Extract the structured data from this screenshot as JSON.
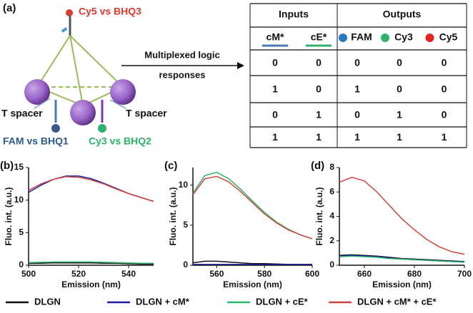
{
  "panel_a": {
    "label": "(a)",
    "top_pair": "Cy5 vs BHQ3",
    "arrow_text": [
      "Multiplexed logic",
      "responses"
    ],
    "spacer_left": "T spacer",
    "spacer_right": "T spacer",
    "left_pair": "FAM vs BHQ1",
    "right_pair": "Cy3 vs BHQ2"
  },
  "table": {
    "groups": [
      "Inputs",
      "Outputs"
    ],
    "columns": [
      "cM*",
      "cE*",
      "FAM",
      "Cy3",
      "Cy5"
    ],
    "rows": [
      [
        0,
        0,
        0,
        0,
        0
      ],
      [
        1,
        0,
        1,
        0,
        0
      ],
      [
        0,
        1,
        0,
        1,
        0
      ],
      [
        1,
        1,
        1,
        1,
        1
      ]
    ]
  },
  "legend": [
    {
      "name": "DLGN",
      "color": "#111111"
    },
    {
      "name": "DLGN + cM*",
      "color": "#1c1c9c"
    },
    {
      "name": "DLGN + cE*",
      "color": "#2bb36b"
    },
    {
      "name": "DLGN + cM* + cE*",
      "color": "#d0463f"
    }
  ],
  "chart_data": [
    {
      "type": "line",
      "panel": "(b)",
      "x_label": "Emission (nm)",
      "y_label": "Fluo. int. (a.u.)",
      "x": [
        500,
        505,
        510,
        515,
        520,
        525,
        530,
        535,
        540,
        545,
        550
      ],
      "xlim": [
        500,
        550
      ],
      "xticks": [
        500,
        520,
        540
      ],
      "ylim": [
        0,
        15
      ],
      "yticks": [
        0,
        5,
        10,
        15
      ],
      "series": [
        {
          "values": [
            0.3,
            0.3,
            0.35,
            0.35,
            0.35,
            0.35,
            0.3,
            0.3,
            0.25,
            0.2,
            0.2
          ]
        },
        {
          "values": [
            11.2,
            12.3,
            13.2,
            13.7,
            13.7,
            13.3,
            12.6,
            11.8,
            11.0,
            10.4,
            9.8
          ]
        },
        {
          "values": [
            0.4,
            0.45,
            0.5,
            0.5,
            0.5,
            0.5,
            0.45,
            0.4,
            0.35,
            0.3,
            0.3
          ]
        },
        {
          "values": [
            11.5,
            12.5,
            13.2,
            13.6,
            13.5,
            13.1,
            12.5,
            11.7,
            11.0,
            10.4,
            9.8
          ]
        }
      ]
    },
    {
      "type": "line",
      "panel": "(c)",
      "x_label": "Emission (nm)",
      "y_label": "Fluo. int. (a.u.)",
      "x": [
        550,
        555,
        560,
        565,
        570,
        575,
        580,
        585,
        590,
        595,
        600
      ],
      "xlim": [
        550,
        600
      ],
      "xticks": [
        560,
        580,
        600
      ],
      "ylim": [
        0,
        12.2
      ],
      "yticks": [
        0,
        5,
        10
      ],
      "series": [
        {
          "values": [
            0.3,
            0.5,
            0.5,
            0.4,
            0.3,
            0.2,
            0.2,
            0.15,
            0.1,
            0.1,
            0.1
          ]
        },
        {
          "values": [
            0.1,
            0.1,
            0.1,
            0.1,
            0.1,
            0.1,
            0.1,
            0.1,
            0.1,
            0.1,
            0.1
          ]
        },
        {
          "values": [
            9.0,
            11.2,
            11.6,
            10.8,
            9.5,
            8.0,
            6.6,
            5.4,
            4.5,
            3.8,
            3.3
          ]
        },
        {
          "values": [
            8.8,
            10.8,
            11.1,
            10.4,
            9.2,
            7.8,
            6.4,
            5.3,
            4.4,
            3.8,
            3.3
          ]
        }
      ]
    },
    {
      "type": "line",
      "panel": "(d)",
      "x_label": "Emission (nm)",
      "y_label": "Fluo. int. (a.u.)",
      "x": [
        650,
        655,
        660,
        665,
        670,
        675,
        680,
        685,
        690,
        695,
        700
      ],
      "xlim": [
        650,
        700
      ],
      "xticks": [
        660,
        680,
        700
      ],
      "ylim": [
        0,
        8
      ],
      "yticks": [
        0,
        2,
        4,
        6,
        8
      ],
      "series": [
        {
          "values": [
            0.8,
            0.85,
            0.8,
            0.75,
            0.65,
            0.55,
            0.5,
            0.45,
            0.4,
            0.35,
            0.3
          ]
        },
        {
          "values": [
            0.75,
            0.8,
            0.75,
            0.7,
            0.6,
            0.5,
            0.45,
            0.4,
            0.35,
            0.3,
            0.3
          ]
        },
        {
          "values": [
            0.7,
            0.75,
            0.7,
            0.65,
            0.55,
            0.5,
            0.45,
            0.4,
            0.35,
            0.3,
            0.25
          ]
        },
        {
          "values": [
            6.8,
            7.2,
            6.9,
            6.0,
            4.9,
            3.8,
            2.9,
            2.1,
            1.5,
            1.1,
            0.9
          ]
        }
      ]
    }
  ]
}
